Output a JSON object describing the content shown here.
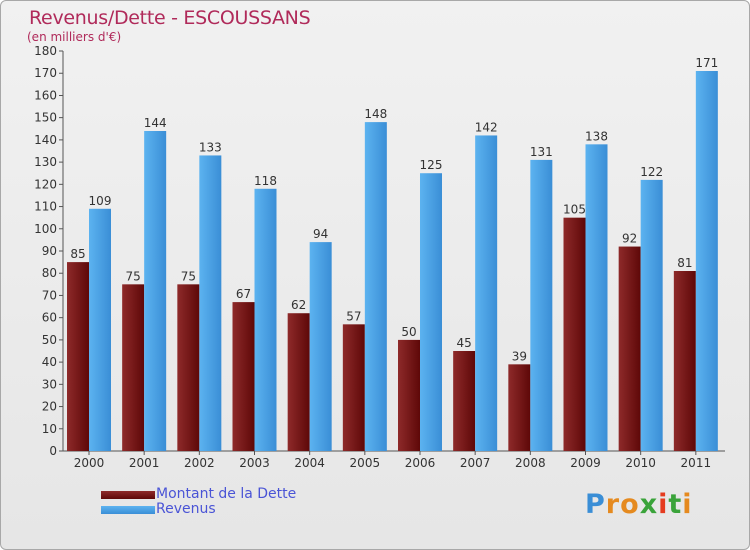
{
  "title": "Revenus/Dette - ESCOUSSANS",
  "subtitle": "(en milliers d'€)",
  "logo_text": "Proxiti",
  "colors": {
    "dette": "#7a1414",
    "revenus": "#4aa3e6",
    "title": "#b02a5a",
    "legend_text": "#4a54d6"
  },
  "chart_data": {
    "type": "bar",
    "title": "Revenus/Dette - ESCOUSSANS",
    "subtitle": "(en milliers d'€)",
    "categories": [
      "2000",
      "2001",
      "2002",
      "2003",
      "2004",
      "2005",
      "2006",
      "2007",
      "2008",
      "2009",
      "2010",
      "2011"
    ],
    "series": [
      {
        "name": "Montant de la Dette",
        "values": [
          85,
          75,
          75,
          67,
          62,
          57,
          50,
          45,
          39,
          105,
          92,
          81
        ],
        "color": "#7a1414"
      },
      {
        "name": "Revenus",
        "values": [
          109,
          144,
          133,
          118,
          94,
          148,
          125,
          142,
          131,
          138,
          122,
          171
        ],
        "color": "#4aa3e6"
      }
    ],
    "ylim": [
      0,
      180
    ],
    "ytick_step": 10,
    "grid": false,
    "legend_position": "bottom-left",
    "data_labels": true
  }
}
